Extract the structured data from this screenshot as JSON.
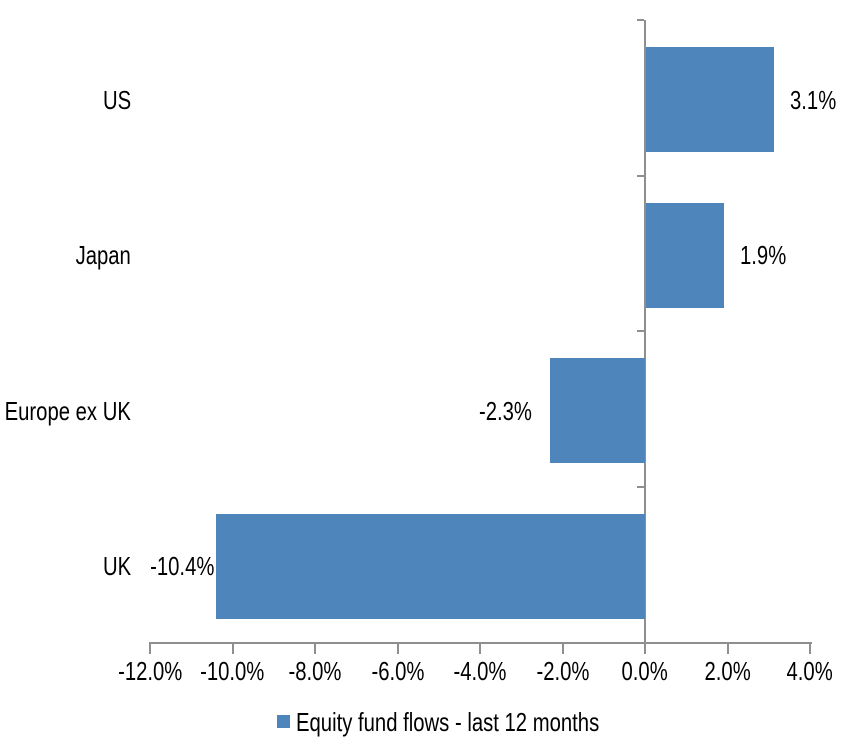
{
  "chart_data": {
    "type": "bar",
    "orientation": "horizontal",
    "title": "",
    "categories": [
      "US",
      "Japan",
      "Europe ex UK",
      "UK"
    ],
    "series": [
      {
        "name": "Equity fund flows - last 12 months",
        "values": [
          3.1,
          1.9,
          -2.3,
          -10.4
        ]
      }
    ],
    "data_labels": [
      "3.1%",
      "1.9%",
      "-2.3%",
      "-10.4%"
    ],
    "x_axis": {
      "min": -12,
      "max": 4,
      "unit": "%",
      "tick_values": [
        -12,
        -10,
        -8,
        -6,
        -4,
        -2,
        0,
        2,
        4
      ],
      "tick_labels": [
        "-12.0%",
        "-10.0%",
        "-8.0%",
        "-6.0%",
        "-4.0%",
        "-2.0%",
        "0.0%",
        "2.0%",
        "4.0%"
      ]
    },
    "legend": {
      "position": "bottom",
      "entries": [
        {
          "label": "Equity fund flows - last 12 months",
          "color": "#4E86BC"
        }
      ]
    },
    "colors": {
      "bar": "#4E86BC",
      "axis": "#8F8F8F",
      "text": "#000000",
      "background": "#FFFFFF"
    },
    "grid": "off"
  }
}
